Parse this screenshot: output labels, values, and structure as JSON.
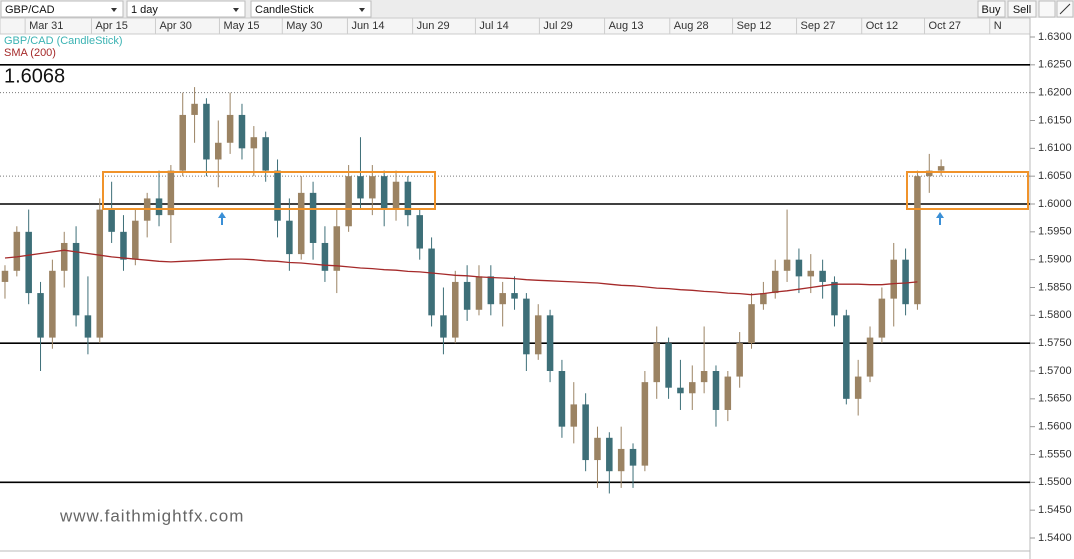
{
  "toolbar": {
    "symbol": "GBP/CAD",
    "interval": "1 day",
    "chart_type": "CandleStick",
    "buy": "Buy",
    "sell": "Sell"
  },
  "watermark": "www.faithmightfx.com",
  "chart_data": {
    "type": "candlestick",
    "xlim": [
      -0.42,
      86.5
    ],
    "xticks": [
      {
        "value": 1.7,
        "label": "Mar 31"
      },
      {
        "value": 7.3,
        "label": "Apr 15"
      },
      {
        "value": 12.7,
        "label": "Apr 30"
      },
      {
        "value": 18.1,
        "label": "May 15"
      },
      {
        "value": 23.4,
        "label": "May 30"
      },
      {
        "value": 28.9,
        "label": "Jun 14"
      },
      {
        "value": 34.4,
        "label": "Jun 29"
      },
      {
        "value": 39.7,
        "label": "Jul 14"
      },
      {
        "value": 45.1,
        "label": "Jul 29"
      },
      {
        "value": 50.6,
        "label": "Aug 13"
      },
      {
        "value": 56.1,
        "label": "Aug 28"
      },
      {
        "value": 61.4,
        "label": "Sep 12"
      },
      {
        "value": 66.8,
        "label": "Sep 27"
      },
      {
        "value": 72.3,
        "label": "Oct 12"
      },
      {
        "value": 77.6,
        "label": "Oct 27"
      },
      {
        "value": 83.1,
        "label": "N"
      }
    ],
    "ylim": [
      1.54,
      1.63
    ],
    "yticks": [
      {
        "value": 1.54,
        "label": "1.5400"
      },
      {
        "value": 1.545,
        "label": "1.5450"
      },
      {
        "value": 1.55,
        "label": "1.5500"
      },
      {
        "value": 1.555,
        "label": "1.5550"
      },
      {
        "value": 1.56,
        "label": "1.5600"
      },
      {
        "value": 1.565,
        "label": "1.5650"
      },
      {
        "value": 1.57,
        "label": "1.5700"
      },
      {
        "value": 1.575,
        "label": "1.5750"
      },
      {
        "value": 1.58,
        "label": "1.5800"
      },
      {
        "value": 1.585,
        "label": "1.5850"
      },
      {
        "value": 1.59,
        "label": "1.5900"
      },
      {
        "value": 1.595,
        "label": "1.5950"
      },
      {
        "value": 1.6,
        "label": "1.6000"
      },
      {
        "value": 1.605,
        "label": "1.6050"
      },
      {
        "value": 1.61,
        "label": "1.6100"
      },
      {
        "value": 1.615,
        "label": "1.6150"
      },
      {
        "value": 1.62,
        "label": "1.6200"
      },
      {
        "value": 1.625,
        "label": "1.6250"
      },
      {
        "value": 1.63,
        "label": "1.6300"
      }
    ],
    "levels": [
      1.625,
      1.6,
      1.575,
      1.55
    ],
    "dotted_levels": [
      1.62,
      1.605
    ],
    "series": [
      {
        "name": "GBP/CAD (CandleStick)",
        "up_color": "#9b8363",
        "down_color": "#3d6f78",
        "values": [
          [
            1.586,
            1.589,
            1.583,
            1.588
          ],
          [
            1.588,
            1.596,
            1.587,
            1.595
          ],
          [
            1.595,
            1.599,
            1.582,
            1.584
          ],
          [
            1.584,
            1.586,
            1.57,
            1.576
          ],
          [
            1.576,
            1.59,
            1.574,
            1.588
          ],
          [
            1.588,
            1.595,
            1.585,
            1.593
          ],
          [
            1.593,
            1.596,
            1.578,
            1.58
          ],
          [
            1.58,
            1.587,
            1.573,
            1.576
          ],
          [
            1.576,
            1.601,
            1.575,
            1.599
          ],
          [
            1.599,
            1.604,
            1.593,
            1.595
          ],
          [
            1.595,
            1.598,
            1.588,
            1.59
          ],
          [
            1.59,
            1.599,
            1.589,
            1.597
          ],
          [
            1.597,
            1.602,
            1.594,
            1.601
          ],
          [
            1.601,
            1.606,
            1.596,
            1.598
          ],
          [
            1.598,
            1.607,
            1.593,
            1.606
          ],
          [
            1.606,
            1.62,
            1.605,
            1.616
          ],
          [
            1.616,
            1.621,
            1.611,
            1.618
          ],
          [
            1.618,
            1.619,
            1.605,
            1.608
          ],
          [
            1.608,
            1.615,
            1.603,
            1.611
          ],
          [
            1.611,
            1.62,
            1.609,
            1.616
          ],
          [
            1.616,
            1.618,
            1.608,
            1.61
          ],
          [
            1.61,
            1.614,
            1.605,
            1.612
          ],
          [
            1.612,
            1.613,
            1.604,
            1.606
          ],
          [
            1.606,
            1.608,
            1.594,
            1.597
          ],
          [
            1.597,
            1.601,
            1.588,
            1.591
          ],
          [
            1.591,
            1.605,
            1.59,
            1.602
          ],
          [
            1.602,
            1.604,
            1.59,
            1.593
          ],
          [
            1.593,
            1.596,
            1.586,
            1.588
          ],
          [
            1.588,
            1.599,
            1.584,
            1.596
          ],
          [
            1.596,
            1.607,
            1.595,
            1.605
          ],
          [
            1.605,
            1.612,
            1.599,
            1.601
          ],
          [
            1.601,
            1.607,
            1.598,
            1.605
          ],
          [
            1.605,
            1.606,
            1.596,
            1.599
          ],
          [
            1.599,
            1.606,
            1.597,
            1.604
          ],
          [
            1.604,
            1.605,
            1.596,
            1.598
          ],
          [
            1.598,
            1.599,
            1.59,
            1.592
          ],
          [
            1.592,
            1.594,
            1.578,
            1.58
          ],
          [
            1.58,
            1.585,
            1.573,
            1.576
          ],
          [
            1.576,
            1.588,
            1.575,
            1.586
          ],
          [
            1.586,
            1.589,
            1.579,
            1.581
          ],
          [
            1.581,
            1.589,
            1.58,
            1.587
          ],
          [
            1.587,
            1.589,
            1.58,
            1.582
          ],
          [
            1.582,
            1.586,
            1.578,
            1.584
          ],
          [
            1.584,
            1.587,
            1.581,
            1.583
          ],
          [
            1.583,
            1.584,
            1.57,
            1.573
          ],
          [
            1.573,
            1.582,
            1.572,
            1.58
          ],
          [
            1.58,
            1.581,
            1.568,
            1.57
          ],
          [
            1.57,
            1.572,
            1.558,
            1.56
          ],
          [
            1.56,
            1.568,
            1.557,
            1.564
          ],
          [
            1.564,
            1.566,
            1.552,
            1.554
          ],
          [
            1.554,
            1.56,
            1.549,
            1.558
          ],
          [
            1.558,
            1.559,
            1.548,
            1.552
          ],
          [
            1.552,
            1.56,
            1.549,
            1.556
          ],
          [
            1.556,
            1.557,
            1.549,
            1.553
          ],
          [
            1.553,
            1.57,
            1.552,
            1.568
          ],
          [
            1.568,
            1.578,
            1.565,
            1.575
          ],
          [
            1.575,
            1.576,
            1.565,
            1.567
          ],
          [
            1.567,
            1.572,
            1.563,
            1.566
          ],
          [
            1.566,
            1.571,
            1.563,
            1.568
          ],
          [
            1.568,
            1.578,
            1.566,
            1.57
          ],
          [
            1.57,
            1.571,
            1.56,
            1.563
          ],
          [
            1.563,
            1.57,
            1.561,
            1.569
          ],
          [
            1.569,
            1.577,
            1.567,
            1.575
          ],
          [
            1.575,
            1.584,
            1.574,
            1.582
          ],
          [
            1.582,
            1.586,
            1.581,
            1.584
          ],
          [
            1.584,
            1.59,
            1.583,
            1.588
          ],
          [
            1.588,
            1.599,
            1.586,
            1.59
          ],
          [
            1.59,
            1.592,
            1.584,
            1.587
          ],
          [
            1.587,
            1.591,
            1.584,
            1.588
          ],
          [
            1.588,
            1.59,
            1.583,
            1.586
          ],
          [
            1.586,
            1.587,
            1.578,
            1.58
          ],
          [
            1.58,
            1.581,
            1.564,
            1.565
          ],
          [
            1.565,
            1.572,
            1.562,
            1.569
          ],
          [
            1.569,
            1.578,
            1.568,
            1.576
          ],
          [
            1.576,
            1.585,
            1.575,
            1.583
          ],
          [
            1.583,
            1.593,
            1.578,
            1.59
          ],
          [
            1.59,
            1.592,
            1.58,
            1.582
          ],
          [
            1.582,
            1.606,
            1.581,
            1.605
          ],
          [
            1.605,
            1.609,
            1.602,
            1.606
          ],
          [
            1.606,
            1.608,
            1.605,
            1.6068
          ]
        ]
      },
      {
        "name": "SMA (200)",
        "color": "#a52a2a",
        "values": [
          1.5903,
          1.5905,
          1.5908,
          1.5911,
          1.5914,
          1.5917,
          1.5914,
          1.5911,
          1.5908,
          1.5905,
          1.5903,
          1.5901,
          1.5899,
          1.5897,
          1.5896,
          1.5897,
          1.5898,
          1.5899,
          1.59,
          1.5901,
          1.5901,
          1.59,
          1.5898,
          1.5897,
          1.5895,
          1.5894,
          1.5892,
          1.589,
          1.5889,
          1.5887,
          1.5885,
          1.5884,
          1.5882,
          1.5881,
          1.5879,
          1.5878,
          1.5876,
          1.5874,
          1.5872,
          1.5871,
          1.5869,
          1.5868,
          1.5867,
          1.5866,
          1.5864,
          1.5863,
          1.5862,
          1.5861,
          1.586,
          1.5859,
          1.5858,
          1.5856,
          1.5854,
          1.5853,
          1.5851,
          1.5849,
          1.5848,
          1.5846,
          1.5845,
          1.5843,
          1.5842,
          1.584,
          1.5839,
          1.5837,
          1.5839,
          1.5842,
          1.5844,
          1.5847,
          1.585,
          1.5853,
          1.5856,
          1.5856,
          1.5856,
          1.5855,
          1.5855,
          1.5857,
          1.5858,
          1.586,
          null,
          null
        ]
      }
    ]
  }
}
